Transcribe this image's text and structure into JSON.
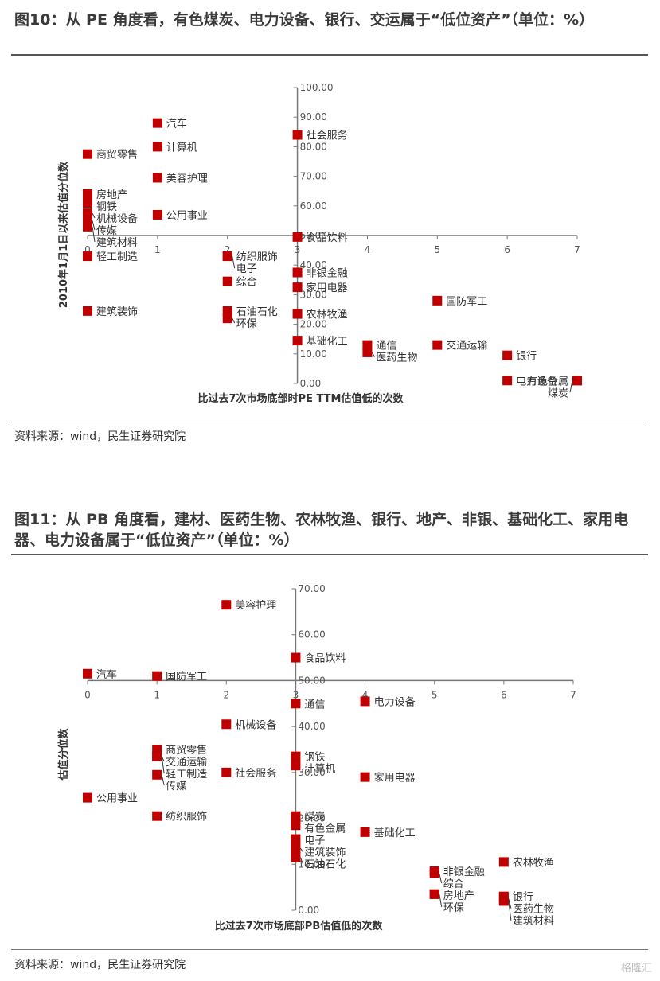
{
  "figure10": {
    "title": "图10：从 PE 角度看，有色煤炭、电力设备、银行、交运属于“低位资产”（单位：%）",
    "source": "资料来源：wind，民生证券研究院",
    "chart_data": {
      "type": "scatter",
      "title": "",
      "xlabel": "比过去7次市场底部时PE TTM估值低的次数",
      "ylabel": "2010年1月1日以来估值分位数",
      "xlim": [
        0,
        7
      ],
      "ylim": [
        0,
        100
      ],
      "x_ticks": [
        "0",
        "1",
        "2",
        "3",
        "4",
        "5",
        "6",
        "7"
      ],
      "y_ticks": [
        "0.00",
        "10.00",
        "20.00",
        "30.00",
        "40.00",
        "50.00",
        "60.00",
        "70.00",
        "80.00",
        "90.00",
        "100.00"
      ],
      "marker_color": "#c00000",
      "points": [
        {
          "label": "商贸零售",
          "x": 0,
          "y": 77.5
        },
        {
          "label": "房地产",
          "x": 0,
          "y": 64
        },
        {
          "label": "钢铁",
          "x": 0,
          "y": 61
        },
        {
          "label": "机械设备",
          "x": 0,
          "y": 57.5
        },
        {
          "label": "传媒",
          "x": 0,
          "y": 55
        },
        {
          "label": "建筑材料",
          "x": 0,
          "y": 53
        },
        {
          "label": "轻工制造",
          "x": 0,
          "y": 43
        },
        {
          "label": "建筑装饰",
          "x": 0,
          "y": 24.5
        },
        {
          "label": "汽车",
          "x": 1,
          "y": 88
        },
        {
          "label": "计算机",
          "x": 1,
          "y": 80
        },
        {
          "label": "美容护理",
          "x": 1,
          "y": 69.5
        },
        {
          "label": "公用事业",
          "x": 1,
          "y": 57
        },
        {
          "label": "纺织服饰",
          "x": 2,
          "y": 43
        },
        {
          "label": "电子",
          "x": 2,
          "y": 43
        },
        {
          "label": "综合",
          "x": 2,
          "y": 34.5
        },
        {
          "label": "石油石化",
          "x": 2,
          "y": 24.5
        },
        {
          "label": "环保",
          "x": 2,
          "y": 22
        },
        {
          "label": "社会服务",
          "x": 3,
          "y": 84
        },
        {
          "label": "食品饮料",
          "x": 3,
          "y": 49.5
        },
        {
          "label": "非银金融",
          "x": 3,
          "y": 37.5
        },
        {
          "label": "家用电器",
          "x": 3,
          "y": 32.5
        },
        {
          "label": "农林牧渔",
          "x": 3,
          "y": 23.5
        },
        {
          "label": "基础化工",
          "x": 3,
          "y": 14.5
        },
        {
          "label": "通信",
          "x": 4,
          "y": 13
        },
        {
          "label": "医药生物",
          "x": 4,
          "y": 10.5
        },
        {
          "label": "国防军工",
          "x": 5,
          "y": 28
        },
        {
          "label": "交通运输",
          "x": 5,
          "y": 13
        },
        {
          "label": "银行",
          "x": 6,
          "y": 9.5
        },
        {
          "label": "电力设备",
          "x": 6,
          "y": 1
        },
        {
          "label": "有色金属",
          "x": 7,
          "y": 1
        },
        {
          "label": "煤炭",
          "x": 7,
          "y": 1
        }
      ]
    }
  },
  "figure11": {
    "title": "图11：从 PB 角度看，建材、医药生物、农林牧渔、银行、地产、非银、基础化工、家用电器、电力设备属于“低位资产”（单位：%）",
    "source": "资料来源：wind，民生证券研究院",
    "chart_data": {
      "type": "scatter",
      "title": "",
      "xlabel": "比过去7次市场底部PB估值低的次数",
      "ylabel": "估值分位数",
      "xlim": [
        0,
        7
      ],
      "ylim": [
        0,
        70
      ],
      "x_ticks": [
        "0",
        "1",
        "2",
        "3",
        "4",
        "5",
        "6",
        "7"
      ],
      "y_ticks": [
        "0.00",
        "10.00",
        "20.00",
        "30.00",
        "40.00",
        "50.00",
        "60.00",
        "70.00"
      ],
      "marker_color": "#c00000",
      "points": [
        {
          "label": "汽车",
          "x": 0,
          "y": 51.5
        },
        {
          "label": "公用事业",
          "x": 0,
          "y": 24.5
        },
        {
          "label": "国防军工",
          "x": 1,
          "y": 51
        },
        {
          "label": "商贸零售",
          "x": 1,
          "y": 35
        },
        {
          "label": "交通运输",
          "x": 1,
          "y": 33.5
        },
        {
          "label": "轻工制造",
          "x": 1,
          "y": 33.5
        },
        {
          "label": "传媒",
          "x": 1,
          "y": 29.5
        },
        {
          "label": "纺织服饰",
          "x": 1,
          "y": 20.5
        },
        {
          "label": "美容护理",
          "x": 2,
          "y": 66.5
        },
        {
          "label": "机械设备",
          "x": 2,
          "y": 40.5
        },
        {
          "label": "社会服务",
          "x": 2,
          "y": 30
        },
        {
          "label": "食品饮料",
          "x": 3,
          "y": 55
        },
        {
          "label": "通信",
          "x": 3,
          "y": 45
        },
        {
          "label": "钢铁",
          "x": 3,
          "y": 33.5
        },
        {
          "label": "计算机",
          "x": 3,
          "y": 31.5
        },
        {
          "label": "煤炭",
          "x": 3,
          "y": 20.5
        },
        {
          "label": "有色金属",
          "x": 3,
          "y": 18.5
        },
        {
          "label": "电子",
          "x": 3,
          "y": 15.5
        },
        {
          "label": "建筑装饰",
          "x": 3,
          "y": 13.5
        },
        {
          "label": "石油石化",
          "x": 3,
          "y": 11.5
        },
        {
          "label": "电力设备",
          "x": 4,
          "y": 45.5
        },
        {
          "label": "家用电器",
          "x": 4,
          "y": 29
        },
        {
          "label": "基础化工",
          "x": 4,
          "y": 17
        },
        {
          "label": "非银金融",
          "x": 5,
          "y": 8.5
        },
        {
          "label": "综合",
          "x": 5,
          "y": 8
        },
        {
          "label": "房地产",
          "x": 5,
          "y": 3.5
        },
        {
          "label": "环保",
          "x": 5,
          "y": 3.5
        },
        {
          "label": "农林牧渔",
          "x": 6,
          "y": 10.5
        },
        {
          "label": "银行",
          "x": 6,
          "y": 3
        },
        {
          "label": "医药生物",
          "x": 6,
          "y": 2.5
        },
        {
          "label": "建筑材料",
          "x": 6,
          "y": 2
        }
      ]
    }
  },
  "watermark": "格隆汇"
}
